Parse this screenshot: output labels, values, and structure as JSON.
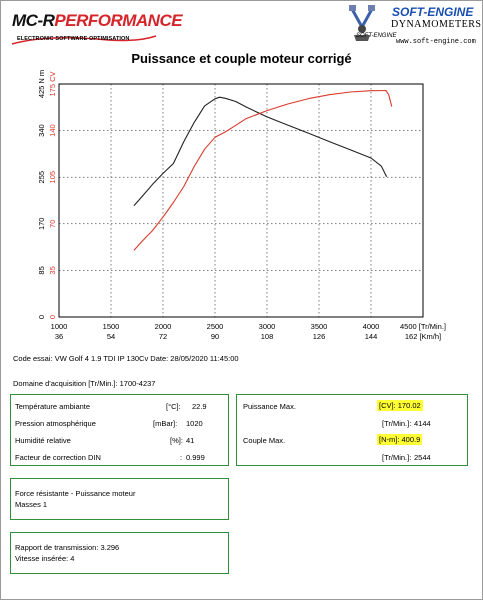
{
  "header": {
    "left_logo": {
      "name_part1": "MC-R",
      "name_part2": "PERFORMANCE",
      "subtitle": "ELECTRONIC SOFTWARE OPTIMISATION"
    },
    "right_logo": {
      "brand": "SOFT-ENGINE",
      "tagline": "DYNAMOMETERS",
      "small": "SOFT-ENGINE",
      "url": "www.soft-engine.com"
    }
  },
  "chart_data": {
    "type": "line",
    "title": "Puissance et couple moteur corrigé",
    "x_axis": {
      "range": [
        1000,
        4500
      ],
      "ticks": [
        "1000",
        "1500",
        "2000",
        "2500",
        "3000",
        "3500",
        "4000",
        "4500 [Tr/Min.]"
      ],
      "secondary_ticks": [
        "36",
        "54",
        "72",
        "90",
        "108",
        "126",
        "144",
        "162 [Km/h]"
      ]
    },
    "y_axis_torque": {
      "range": [
        0,
        425
      ],
      "ticks": [
        "0",
        "85",
        "170",
        "255",
        "340",
        "425 N m"
      ],
      "color": "#000000"
    },
    "y_axis_power": {
      "range": [
        0,
        175
      ],
      "ticks": [
        "0",
        "35",
        "70",
        "105",
        "140",
        "175 CV"
      ],
      "color": "#d93a2b"
    },
    "series": [
      {
        "axis": "torque",
        "color": "#222222",
        "x": [
          1720,
          1800,
          1900,
          2000,
          2100,
          2200,
          2300,
          2400,
          2500,
          2544,
          2600,
          2700,
          2800,
          3000,
          3200,
          3400,
          3600,
          3800,
          4000,
          4100,
          4150
        ],
        "y": [
          203,
          220,
          242,
          262,
          280,
          320,
          355,
          385,
          398,
          400.9,
          399,
          393,
          383,
          365,
          350,
          335,
          320,
          305,
          290,
          275,
          256
        ]
      },
      {
        "axis": "power",
        "color": "#d93a2b",
        "x": [
          1720,
          1800,
          1900,
          2000,
          2100,
          2200,
          2300,
          2400,
          2500,
          2600,
          2700,
          2800,
          3000,
          3200,
          3400,
          3600,
          3800,
          4000,
          4144,
          4170,
          4200
        ],
        "y": [
          50,
          57,
          65,
          75,
          86,
          98,
          113,
          126,
          135,
          139,
          144,
          149,
          155,
          160,
          164,
          167,
          169,
          170,
          170.02,
          167,
          158
        ]
      }
    ]
  },
  "test_info": {
    "code_line": "Code essai: VW Golf 4 1.9 TDI IP 130Cv  Date: 28/05/2020 11:45:00",
    "domain_line": "Domaine d'acquisition [Tr/Min.]: 1700-4237"
  },
  "conditions": [
    {
      "label": "Température ambiante",
      "unit": "[°C]:",
      "value": "22.9"
    },
    {
      "label": "Pression atmosphérique",
      "unit": "[mBar]:",
      "value": "1020"
    },
    {
      "label": "Humidité relative",
      "unit": "[%]:",
      "value": "41"
    },
    {
      "label": "Facteur de correction DIN",
      "unit": ":",
      "value": "0.999"
    }
  ],
  "results": [
    {
      "label": "Puissance Max.",
      "unit": "[CV]:",
      "value": "170.02",
      "highlight": true
    },
    {
      "label": "",
      "unit": "[Tr/Min.]:",
      "value": "4144",
      "highlight": false
    },
    {
      "label": "Couple Max.",
      "unit": "[N-m]:",
      "value": "400.9",
      "highlight": true
    },
    {
      "label": "",
      "unit": "[Tr/Min.]:",
      "value": "2544",
      "highlight": false
    }
  ],
  "resistance": {
    "line1": "Force résistante - Puissance moteur",
    "line2": "Masses 1"
  },
  "transmission": {
    "ratio": "Rapport de transmission: 3.296",
    "gear": "Vitesse insérée: 4"
  }
}
